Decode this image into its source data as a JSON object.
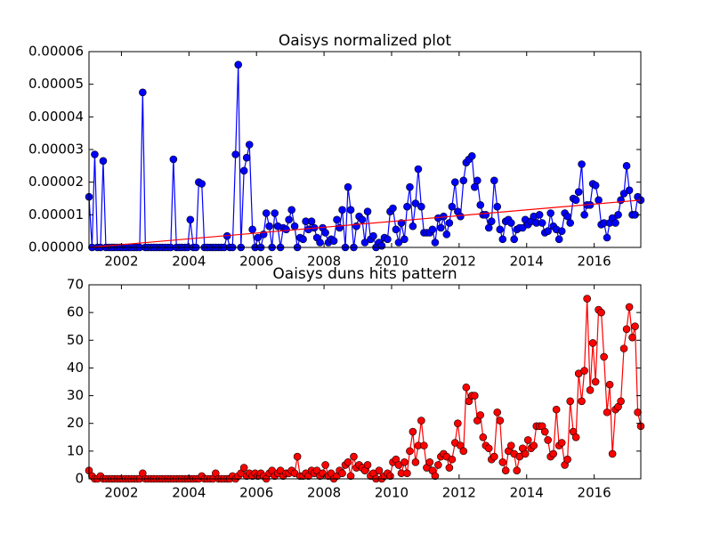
{
  "chart_data": [
    {
      "type": "line",
      "title": "Oaisys normalized plot",
      "x": [
        2001.04,
        2001.13,
        2001.21,
        2001.29,
        2001.38,
        2001.46,
        2001.54,
        2001.63,
        2001.71,
        2001.79,
        2001.88,
        2001.96,
        2002.04,
        2002.13,
        2002.21,
        2002.29,
        2002.38,
        2002.46,
        2002.54,
        2002.63,
        2002.71,
        2002.79,
        2002.88,
        2002.96,
        2003.04,
        2003.13,
        2003.21,
        2003.29,
        2003.38,
        2003.46,
        2003.54,
        2003.63,
        2003.71,
        2003.79,
        2003.88,
        2003.96,
        2004.04,
        2004.13,
        2004.21,
        2004.29,
        2004.38,
        2004.46,
        2004.54,
        2004.63,
        2004.71,
        2004.79,
        2004.88,
        2004.96,
        2005.04,
        2005.13,
        2005.21,
        2005.29,
        2005.38,
        2005.46,
        2005.54,
        2005.63,
        2005.71,
        2005.79,
        2005.88,
        2005.96,
        2006.04,
        2006.13,
        2006.21,
        2006.29,
        2006.38,
        2006.46,
        2006.54,
        2006.63,
        2006.71,
        2006.79,
        2006.88,
        2006.96,
        2007.04,
        2007.13,
        2007.21,
        2007.29,
        2007.38,
        2007.46,
        2007.54,
        2007.63,
        2007.71,
        2007.79,
        2007.88,
        2007.96,
        2008.04,
        2008.13,
        2008.21,
        2008.29,
        2008.38,
        2008.46,
        2008.54,
        2008.63,
        2008.71,
        2008.79,
        2008.88,
        2008.96,
        2009.04,
        2009.13,
        2009.21,
        2009.29,
        2009.38,
        2009.46,
        2009.54,
        2009.63,
        2009.71,
        2009.79,
        2009.88,
        2009.96,
        2010.04,
        2010.13,
        2010.21,
        2010.29,
        2010.38,
        2010.46,
        2010.54,
        2010.63,
        2010.71,
        2010.79,
        2010.88,
        2010.96,
        2011.04,
        2011.13,
        2011.21,
        2011.29,
        2011.38,
        2011.46,
        2011.54,
        2011.63,
        2011.71,
        2011.79,
        2011.88,
        2011.96,
        2012.04,
        2012.13,
        2012.21,
        2012.29,
        2012.38,
        2012.46,
        2012.54,
        2012.63,
        2012.71,
        2012.79,
        2012.88,
        2012.96,
        2013.04,
        2013.13,
        2013.21,
        2013.29,
        2013.38,
        2013.46,
        2013.54,
        2013.63,
        2013.71,
        2013.79,
        2013.88,
        2013.96,
        2014.04,
        2014.13,
        2014.21,
        2014.29,
        2014.38,
        2014.46,
        2014.54,
        2014.63,
        2014.71,
        2014.79,
        2014.88,
        2014.96,
        2015.04,
        2015.13,
        2015.21,
        2015.29,
        2015.38,
        2015.46,
        2015.54,
        2015.63,
        2015.71,
        2015.79,
        2015.88,
        2015.96,
        2016.04,
        2016.13,
        2016.21,
        2016.29,
        2016.38,
        2016.46,
        2016.54,
        2016.63,
        2016.71,
        2016.79,
        2016.88,
        2016.96,
        2017.04,
        2017.13,
        2017.21,
        2017.29,
        2017.38
      ],
      "series": [
        {
          "color": "#0000ff",
          "values": [
            1.55e-05,
            0,
            2.85e-05,
            0,
            0,
            2.65e-05,
            0,
            0,
            0,
            0,
            0,
            0,
            0,
            0,
            0,
            0,
            0,
            0,
            0,
            4.75e-05,
            0,
            0,
            0,
            0,
            0,
            0,
            0,
            0,
            0,
            0,
            2.7e-05,
            0,
            0,
            0,
            0,
            0,
            8.5e-06,
            0,
            0,
            2e-05,
            1.95e-05,
            0,
            0,
            0,
            0,
            0,
            0,
            0,
            0,
            3.5e-06,
            0,
            0,
            2.85e-05,
            5.6e-05,
            0,
            2.35e-05,
            2.75e-05,
            3.15e-05,
            5.5e-06,
            0,
            3e-06,
            0,
            4e-06,
            1.05e-05,
            6.5e-06,
            0,
            1.05e-05,
            6.5e-06,
            0,
            6e-06,
            5.5e-06,
            8.5e-06,
            1.15e-05,
            6.5e-06,
            0,
            3e-06,
            2.5e-06,
            8e-06,
            5.5e-06,
            8e-06,
            6e-06,
            3e-06,
            1.5e-06,
            6e-06,
            4.5e-06,
            1.5e-06,
            2.5e-06,
            2e-06,
            8.5e-06,
            6e-06,
            1.15e-05,
            0,
            1.85e-05,
            1.15e-05,
            0,
            6.5e-06,
            9.5e-06,
            8.5e-06,
            1.5e-06,
            1.1e-05,
            2.5e-06,
            3.5e-06,
            0,
            1.5e-06,
            5e-07,
            3e-06,
            2.5e-06,
            1.1e-05,
            1.2e-05,
            5.5e-06,
            1.5e-06,
            7.5e-06,
            2.5e-06,
            1.25e-05,
            1.85e-05,
            6.5e-06,
            1.35e-05,
            2.4e-05,
            1.25e-05,
            4.5e-06,
            4.5e-06,
            4.5e-06,
            5.5e-06,
            1.5e-06,
            9e-06,
            6e-06,
            9.5e-06,
            4e-06,
            7.5e-06,
            1.25e-05,
            2e-05,
            1.1e-05,
            9.5e-06,
            2.05e-05,
            2.6e-05,
            2.7e-05,
            2.8e-05,
            1.85e-05,
            2.05e-05,
            1.3e-05,
            1e-05,
            1e-05,
            6e-06,
            8e-06,
            2.05e-05,
            1.25e-05,
            5.5e-06,
            2.5e-06,
            8e-06,
            8.5e-06,
            7.5e-06,
            2.5e-06,
            5.5e-06,
            6e-06,
            6e-06,
            8.5e-06,
            7e-06,
            8e-06,
            9.5e-06,
            7.5e-06,
            1e-05,
            7.5e-06,
            4.5e-06,
            5e-06,
            1.05e-05,
            6.5e-06,
            5.5e-06,
            2.5e-06,
            5e-06,
            1.05e-05,
            9.5e-06,
            7.5e-06,
            1.5e-05,
            1.45e-05,
            1.7e-05,
            2.55e-05,
            1e-05,
            1.3e-05,
            1.3e-05,
            1.95e-05,
            1.9e-05,
            1.45e-05,
            7e-06,
            7.5e-06,
            3e-06,
            7.5e-06,
            9e-06,
            7.5e-06,
            1e-05,
            1.45e-05,
            1.65e-05,
            2.5e-05,
            1.75e-05,
            1e-05,
            1e-05,
            1.55e-05,
            1.45e-05
          ]
        }
      ],
      "trend": {
        "x": [
          2001.04,
          2017.38
        ],
        "values": [
          0,
          1.45e-05
        ],
        "color": "#ff0000"
      },
      "xlim": [
        2001.04,
        2017.38
      ],
      "xticks": [
        2002,
        2004,
        2006,
        2008,
        2010,
        2012,
        2014,
        2016
      ],
      "ylim": [
        0,
        6e-05
      ],
      "yticks": [
        {
          "value": 0,
          "label": "0.00000"
        },
        {
          "value": 1e-05,
          "label": "0.00001"
        },
        {
          "value": 2e-05,
          "label": "0.00002"
        },
        {
          "value": 3e-05,
          "label": "0.00003"
        },
        {
          "value": 4e-05,
          "label": "0.00004"
        },
        {
          "value": 5e-05,
          "label": "0.00005"
        },
        {
          "value": 6e-05,
          "label": "0.00006"
        }
      ]
    },
    {
      "type": "line",
      "title": "Oaisys duns hits pattern",
      "x": [
        2001.04,
        2001.13,
        2001.21,
        2001.29,
        2001.38,
        2001.46,
        2001.54,
        2001.63,
        2001.71,
        2001.79,
        2001.88,
        2001.96,
        2002.04,
        2002.13,
        2002.21,
        2002.29,
        2002.38,
        2002.46,
        2002.54,
        2002.63,
        2002.71,
        2002.79,
        2002.88,
        2002.96,
        2003.04,
        2003.13,
        2003.21,
        2003.29,
        2003.38,
        2003.46,
        2003.54,
        2003.63,
        2003.71,
        2003.79,
        2003.88,
        2003.96,
        2004.04,
        2004.13,
        2004.21,
        2004.29,
        2004.38,
        2004.46,
        2004.54,
        2004.63,
        2004.71,
        2004.79,
        2004.88,
        2004.96,
        2005.04,
        2005.13,
        2005.21,
        2005.29,
        2005.38,
        2005.46,
        2005.54,
        2005.63,
        2005.71,
        2005.79,
        2005.88,
        2005.96,
        2006.04,
        2006.13,
        2006.21,
        2006.29,
        2006.38,
        2006.46,
        2006.54,
        2006.63,
        2006.71,
        2006.79,
        2006.88,
        2006.96,
        2007.04,
        2007.13,
        2007.21,
        2007.29,
        2007.38,
        2007.46,
        2007.54,
        2007.63,
        2007.71,
        2007.79,
        2007.88,
        2007.96,
        2008.04,
        2008.13,
        2008.21,
        2008.29,
        2008.38,
        2008.46,
        2008.54,
        2008.63,
        2008.71,
        2008.79,
        2008.88,
        2008.96,
        2009.04,
        2009.13,
        2009.21,
        2009.29,
        2009.38,
        2009.46,
        2009.54,
        2009.63,
        2009.71,
        2009.79,
        2009.88,
        2009.96,
        2010.04,
        2010.13,
        2010.21,
        2010.29,
        2010.38,
        2010.46,
        2010.54,
        2010.63,
        2010.71,
        2010.79,
        2010.88,
        2010.96,
        2011.04,
        2011.13,
        2011.21,
        2011.29,
        2011.38,
        2011.46,
        2011.54,
        2011.63,
        2011.71,
        2011.79,
        2011.88,
        2011.96,
        2012.04,
        2012.13,
        2012.21,
        2012.29,
        2012.38,
        2012.46,
        2012.54,
        2012.63,
        2012.71,
        2012.79,
        2012.88,
        2012.96,
        2013.04,
        2013.13,
        2013.21,
        2013.29,
        2013.38,
        2013.46,
        2013.54,
        2013.63,
        2013.71,
        2013.79,
        2013.88,
        2013.96,
        2014.04,
        2014.13,
        2014.21,
        2014.29,
        2014.38,
        2014.46,
        2014.54,
        2014.63,
        2014.71,
        2014.79,
        2014.88,
        2014.96,
        2015.04,
        2015.13,
        2015.21,
        2015.29,
        2015.38,
        2015.46,
        2015.54,
        2015.63,
        2015.71,
        2015.79,
        2015.88,
        2015.96,
        2016.04,
        2016.13,
        2016.21,
        2016.29,
        2016.38,
        2016.46,
        2016.54,
        2016.63,
        2016.71,
        2016.79,
        2016.88,
        2016.96,
        2017.04,
        2017.13,
        2017.21,
        2017.29,
        2017.38
      ],
      "series": [
        {
          "color": "#ff0000",
          "values": [
            3,
            1,
            0,
            0,
            1,
            0,
            0,
            0,
            0,
            0,
            0,
            0,
            0,
            0,
            0,
            0,
            0,
            0,
            0,
            2,
            0,
            0,
            0,
            0,
            0,
            0,
            0,
            0,
            0,
            0,
            0,
            0,
            0,
            0,
            0,
            0,
            0,
            0,
            0,
            0,
            1,
            0,
            0,
            0,
            0,
            2,
            0,
            0,
            0,
            0,
            0,
            1,
            0,
            1,
            2,
            4,
            1,
            2,
            1,
            2,
            1,
            2,
            1,
            0,
            2,
            3,
            1,
            2,
            3,
            1,
            2,
            2,
            3,
            2,
            8,
            1,
            1,
            2,
            1,
            3,
            2,
            3,
            1,
            2,
            5,
            1,
            2,
            0,
            1,
            3,
            2,
            5,
            6,
            1,
            8,
            4,
            5,
            4,
            3,
            5,
            1,
            2,
            0,
            3,
            0,
            1,
            2,
            1,
            6,
            7,
            5,
            2,
            6,
            2,
            10,
            17,
            6,
            12,
            21,
            12,
            4,
            6,
            3,
            1,
            5,
            8,
            9,
            8,
            4,
            7,
            13,
            20,
            12,
            10,
            33,
            28,
            30,
            30,
            21,
            23,
            15,
            12,
            11,
            7,
            8,
            24,
            21,
            6,
            3,
            10,
            12,
            9,
            3,
            8,
            11,
            9,
            14,
            11,
            12,
            19,
            19,
            19,
            17,
            14,
            8,
            9,
            25,
            12,
            13,
            5,
            7,
            28,
            17,
            15,
            38,
            28,
            39,
            65,
            32,
            49,
            35,
            61,
            60,
            44,
            24,
            34,
            9,
            25,
            26,
            28,
            47,
            54,
            62,
            51,
            55,
            24,
            19
          ]
        }
      ],
      "xlim": [
        2001.04,
        2017.38
      ],
      "xticks": [
        2002,
        2004,
        2006,
        2008,
        2010,
        2012,
        2014,
        2016
      ],
      "ylim": [
        0,
        70
      ],
      "yticks": [
        0,
        10,
        20,
        30,
        40,
        50,
        60,
        70
      ]
    }
  ]
}
